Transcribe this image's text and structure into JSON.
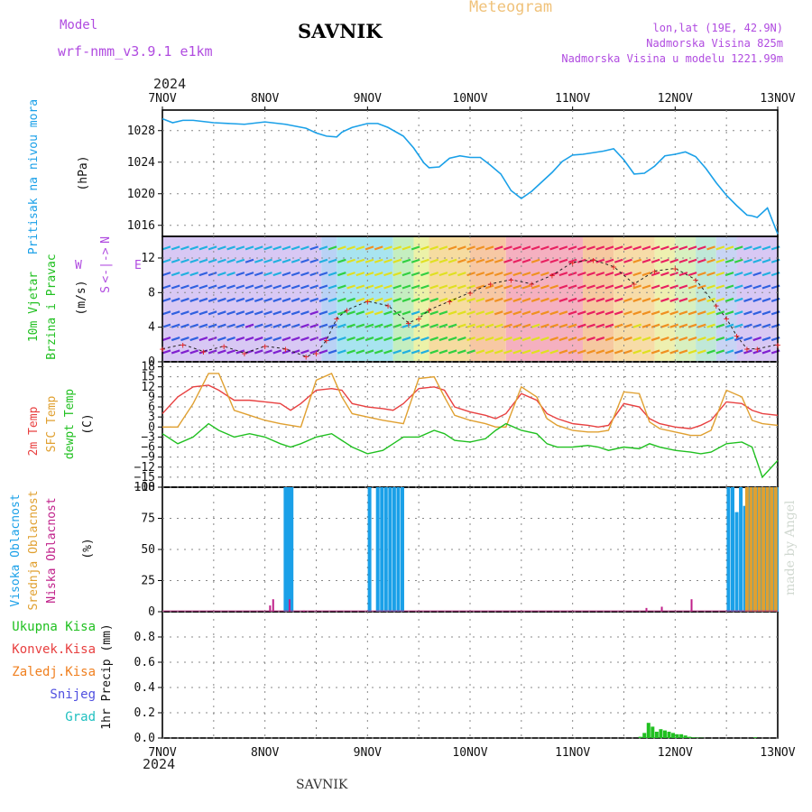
{
  "header": {
    "meteogram_title": "Meteogram",
    "station": "SAVNIK",
    "model_label": "Model",
    "model_name": "wrf-nmm_v3.9.1 e1km",
    "lonlat": "lon,lat (19E, 42.9N)",
    "elevation": "Nadmorska Visina 825m",
    "model_elevation": "Nadmorska Visina u modelu 1221.99m",
    "year": "2024",
    "footer_station": "SAVNIK",
    "signature": "made by Angel"
  },
  "colors": {
    "pressure": "#1aa0e8",
    "temp2m": "#e84040",
    "sfc": "#e0a030",
    "dewpt": "#20c020",
    "high_cloud": "#1aa0e8",
    "mid_cloud": "#e0a030",
    "low_cloud": "#c0208a",
    "precip_total": "#20c020",
    "precip_conv": "#e84040",
    "precip_ice": "#f08020",
    "precip_snow": "#5050e0",
    "precip_hail": "#20c0c0"
  },
  "chart_data": [
    {
      "type": "line",
      "panel": "pressure",
      "ylabel_lines": [
        "Pritisak na nivou mora",
        "(hPa)"
      ],
      "yticks": [
        1016,
        1020,
        1024,
        1028
      ],
      "ylim": [
        1014.6,
        1030.6
      ],
      "x_dates": [
        "7NOV",
        "8NOV",
        "9NOV",
        "10NOV",
        "11NOV",
        "12NOV",
        "13NOV"
      ],
      "series": [
        {
          "x": [
            0,
            0.1,
            0.2,
            0.3,
            0.5,
            0.8,
            1.0,
            1.2,
            1.4,
            1.5,
            1.6,
            1.7,
            1.75,
            1.85,
            2.0,
            2.1,
            2.2,
            2.35,
            2.45,
            2.55,
            2.6,
            2.7,
            2.8,
            2.9,
            3.0,
            3.1,
            3.2,
            3.3,
            3.4,
            3.5,
            3.6,
            3.8,
            3.9,
            4.0,
            4.1,
            4.2,
            4.3,
            4.4,
            4.5,
            4.6,
            4.7,
            4.8,
            4.9,
            5.0,
            5.1,
            5.2,
            5.3,
            5.4,
            5.5,
            5.6,
            5.7,
            5.75,
            5.8,
            5.9,
            6.0
          ],
          "y": [
            1029.5,
            1029.0,
            1029.3,
            1029.3,
            1029.0,
            1028.8,
            1029.1,
            1028.8,
            1028.3,
            1027.7,
            1027.3,
            1027.2,
            1027.8,
            1028.4,
            1028.9,
            1028.9,
            1028.4,
            1027.3,
            1025.8,
            1023.9,
            1023.3,
            1023.4,
            1024.5,
            1024.8,
            1024.6,
            1024.6,
            1023.6,
            1022.5,
            1020.4,
            1019.4,
            1020.3,
            1022.7,
            1024.1,
            1024.9,
            1025.0,
            1025.2,
            1025.4,
            1025.7,
            1024.3,
            1022.5,
            1022.6,
            1023.5,
            1024.8,
            1025.0,
            1025.3,
            1024.7,
            1023.2,
            1021.4,
            1019.8,
            1018.5,
            1017.3,
            1017.2,
            1017.0,
            1018.2,
            1014.9
          ]
        }
      ]
    },
    {
      "type": "scatter",
      "panel": "wind",
      "ylabel_lines": [
        "10m Vjetar",
        "Brzina i Pravac",
        "(m/s)"
      ],
      "yticks": [
        0,
        4,
        8,
        12
      ],
      "ylim": [
        0,
        14.5
      ],
      "compass": {
        "n": "N",
        "s": "S",
        "e": "E",
        "w": "W",
        "arrows": "<-|->"
      },
      "series": [
        {
          "name": "speed",
          "x": [
            0,
            0.2,
            0.4,
            0.6,
            0.8,
            1.0,
            1.2,
            1.4,
            1.5,
            1.6,
            1.7,
            1.8,
            2.0,
            2.2,
            2.4,
            2.5,
            2.6,
            2.8,
            3.0,
            3.2,
            3.4,
            3.6,
            3.8,
            4.0,
            4.2,
            4.4,
            4.6,
            4.8,
            5.0,
            5.2,
            5.4,
            5.5,
            5.6,
            5.7,
            5.8,
            6.0
          ],
          "y": [
            1.5,
            2.0,
            1.2,
            1.8,
            1.0,
            1.8,
            1.5,
            0.6,
            1.0,
            2.5,
            5.0,
            6.0,
            7.0,
            6.5,
            4.5,
            5.0,
            6.0,
            7.0,
            8.0,
            9.0,
            9.5,
            9.0,
            10.0,
            11.5,
            11.8,
            11.0,
            9.0,
            10.5,
            10.8,
            9.5,
            6.5,
            5.0,
            3.0,
            1.5,
            1.5,
            2.0
          ]
        }
      ]
    },
    {
      "type": "line",
      "panel": "temperature",
      "ylabel_lines": [
        "2m Temp",
        "SFC Temp",
        "dewpt Temp",
        "(C)"
      ],
      "yticks": [
        18,
        15,
        12,
        9,
        6,
        3,
        0,
        -3,
        -6,
        -9,
        -12,
        -15,
        -18
      ],
      "ytick_labels": [
        "18",
        "15",
        "12",
        "9",
        "6",
        "3",
        "0",
        "−3",
        "−6",
        "−9",
        "−12",
        "−15",
        "−18"
      ],
      "ylim": [
        -18,
        19.5
      ],
      "x": [
        0,
        0.15,
        0.3,
        0.45,
        0.55,
        0.7,
        0.85,
        1.0,
        1.15,
        1.25,
        1.35,
        1.5,
        1.65,
        1.75,
        1.85,
        2.0,
        2.15,
        2.25,
        2.35,
        2.5,
        2.65,
        2.75,
        2.85,
        3.0,
        3.15,
        3.25,
        3.35,
        3.5,
        3.65,
        3.75,
        3.85,
        4.0,
        4.15,
        4.25,
        4.35,
        4.5,
        4.65,
        4.75,
        4.85,
        5.0,
        5.15,
        5.25,
        5.35,
        5.5,
        5.65,
        5.75,
        5.85,
        6.0
      ],
      "series": [
        {
          "name": "2m Temp",
          "color_key": "temp2m",
          "y": [
            4,
            9,
            12,
            12.5,
            11,
            8,
            8,
            7.5,
            7,
            5,
            7,
            11,
            11.5,
            11,
            7,
            6,
            5.5,
            5,
            7,
            11.5,
            12,
            11,
            6,
            4.5,
            3.5,
            2.5,
            4,
            10,
            8,
            4,
            2.5,
            1,
            0.5,
            0,
            0.5,
            7,
            6,
            2.5,
            1,
            0,
            -0.5,
            0.5,
            2,
            7.5,
            7,
            5,
            4,
            3.5
          ]
        },
        {
          "name": "SFC Temp",
          "color_key": "sfc",
          "y": [
            0,
            0,
            7,
            16,
            16,
            5,
            3.5,
            2,
            1,
            0.5,
            0,
            14,
            16,
            9,
            4,
            3,
            2,
            1.5,
            1,
            14.5,
            15,
            9,
            3.5,
            2,
            1,
            0,
            0,
            12,
            9,
            2.5,
            0.5,
            -1,
            -1.5,
            -1.5,
            -1,
            10.5,
            10,
            1.5,
            -0.5,
            -1.5,
            -2.5,
            -2.5,
            -1,
            11,
            9,
            2,
            1,
            0.5
          ]
        },
        {
          "name": "dewpt Temp",
          "color_key": "dewpt",
          "y": [
            -2,
            -5,
            -3,
            1,
            -1,
            -3,
            -2,
            -3,
            -5,
            -6,
            -5,
            -3,
            -2,
            -4,
            -6,
            -8,
            -7,
            -5,
            -3,
            -3,
            -1,
            -2,
            -4,
            -4.5,
            -3.5,
            -1,
            1,
            -1,
            -2,
            -5,
            -6,
            -6,
            -5.5,
            -6,
            -7,
            -6,
            -6.5,
            -5,
            -6,
            -7,
            -7.5,
            -8,
            -7.5,
            -5,
            -4.5,
            -6,
            -15,
            -10
          ]
        }
      ]
    },
    {
      "type": "bar",
      "panel": "cloud",
      "ylabel_lines": [
        "Visoka Oblacnost",
        "Srednja Oblacnost",
        "Niska Oblacnost",
        "(%)"
      ],
      "yticks": [
        0,
        25,
        50,
        75,
        100
      ],
      "ylim": [
        0,
        100
      ],
      "series": [
        {
          "name": "Visoka Oblacnost",
          "color_key": "high_cloud",
          "x": [
            1.2,
            1.23,
            1.26,
            2.02,
            2.1,
            2.14,
            2.18,
            2.22,
            2.26,
            2.3,
            2.34,
            5.52,
            5.56,
            5.6,
            5.64,
            5.68,
            5.72,
            5.76,
            5.8,
            5.84,
            5.88,
            5.92,
            5.96,
            5.99
          ],
          "y": [
            100,
            100,
            100,
            100,
            100,
            100,
            100,
            100,
            100,
            100,
            100,
            100,
            100,
            80,
            100,
            85,
            100,
            100,
            100,
            100,
            100,
            100,
            100,
            100
          ]
        },
        {
          "name": "Srednja Oblacnost",
          "color_key": "mid_cloud",
          "x": [
            5.7,
            5.74,
            5.78,
            5.82,
            5.86,
            5.9,
            5.94,
            5.98
          ],
          "y": [
            100,
            100,
            100,
            100,
            100,
            100,
            100,
            100
          ]
        },
        {
          "name": "Niska Oblacnost",
          "color_key": "low_cloud",
          "x": [
            1.05,
            1.08,
            1.24,
            1.38,
            4.72,
            4.87,
            5.16
          ],
          "y": [
            5,
            10,
            10,
            1,
            3,
            4,
            10
          ]
        }
      ]
    },
    {
      "type": "bar",
      "panel": "precip",
      "ylabel_lines": [
        "Ukupna Kisa",
        "Konvek.Kisa",
        "Zaledj.Kisa",
        "Snijeg",
        "Grad",
        "1hr Precip (mm)"
      ],
      "legend": [
        "Ukupna Kisa",
        "Konvek.Kisa",
        "Zaledj.Kisa",
        "Snijeg",
        "Grad"
      ],
      "ylabel": "1hr Precip (mm)",
      "yticks": [
        0,
        0.2,
        0.4,
        0.6,
        0.8
      ],
      "ylim": [
        0,
        1.0
      ],
      "series": [
        {
          "name": "Ukupna Kisa",
          "color_key": "precip_total",
          "x": [
            4.66,
            4.7,
            4.74,
            4.78,
            4.82,
            4.86,
            4.9,
            4.94,
            4.98,
            5.02,
            5.06,
            5.1,
            5.14,
            5.18,
            5.22,
            5.26,
            5.3,
            5.34,
            5.38,
            5.42,
            5.46,
            5.5,
            5.54,
            5.58,
            5.62,
            5.66,
            5.7,
            5.74,
            5.78
          ],
          "y": [
            0.01,
            0.04,
            0.12,
            0.09,
            0.05,
            0.07,
            0.06,
            0.05,
            0.04,
            0.03,
            0.03,
            0.02,
            0.01,
            0.005,
            0.003,
            0.002,
            0,
            0,
            0,
            0,
            0,
            0,
            0,
            0,
            0,
            0,
            0,
            0,
            0.005
          ]
        }
      ]
    }
  ],
  "x_labels": [
    "7NOV",
    "8NOV",
    "9NOV",
    "10NOV",
    "11NOV",
    "12NOV",
    "13NOV"
  ]
}
